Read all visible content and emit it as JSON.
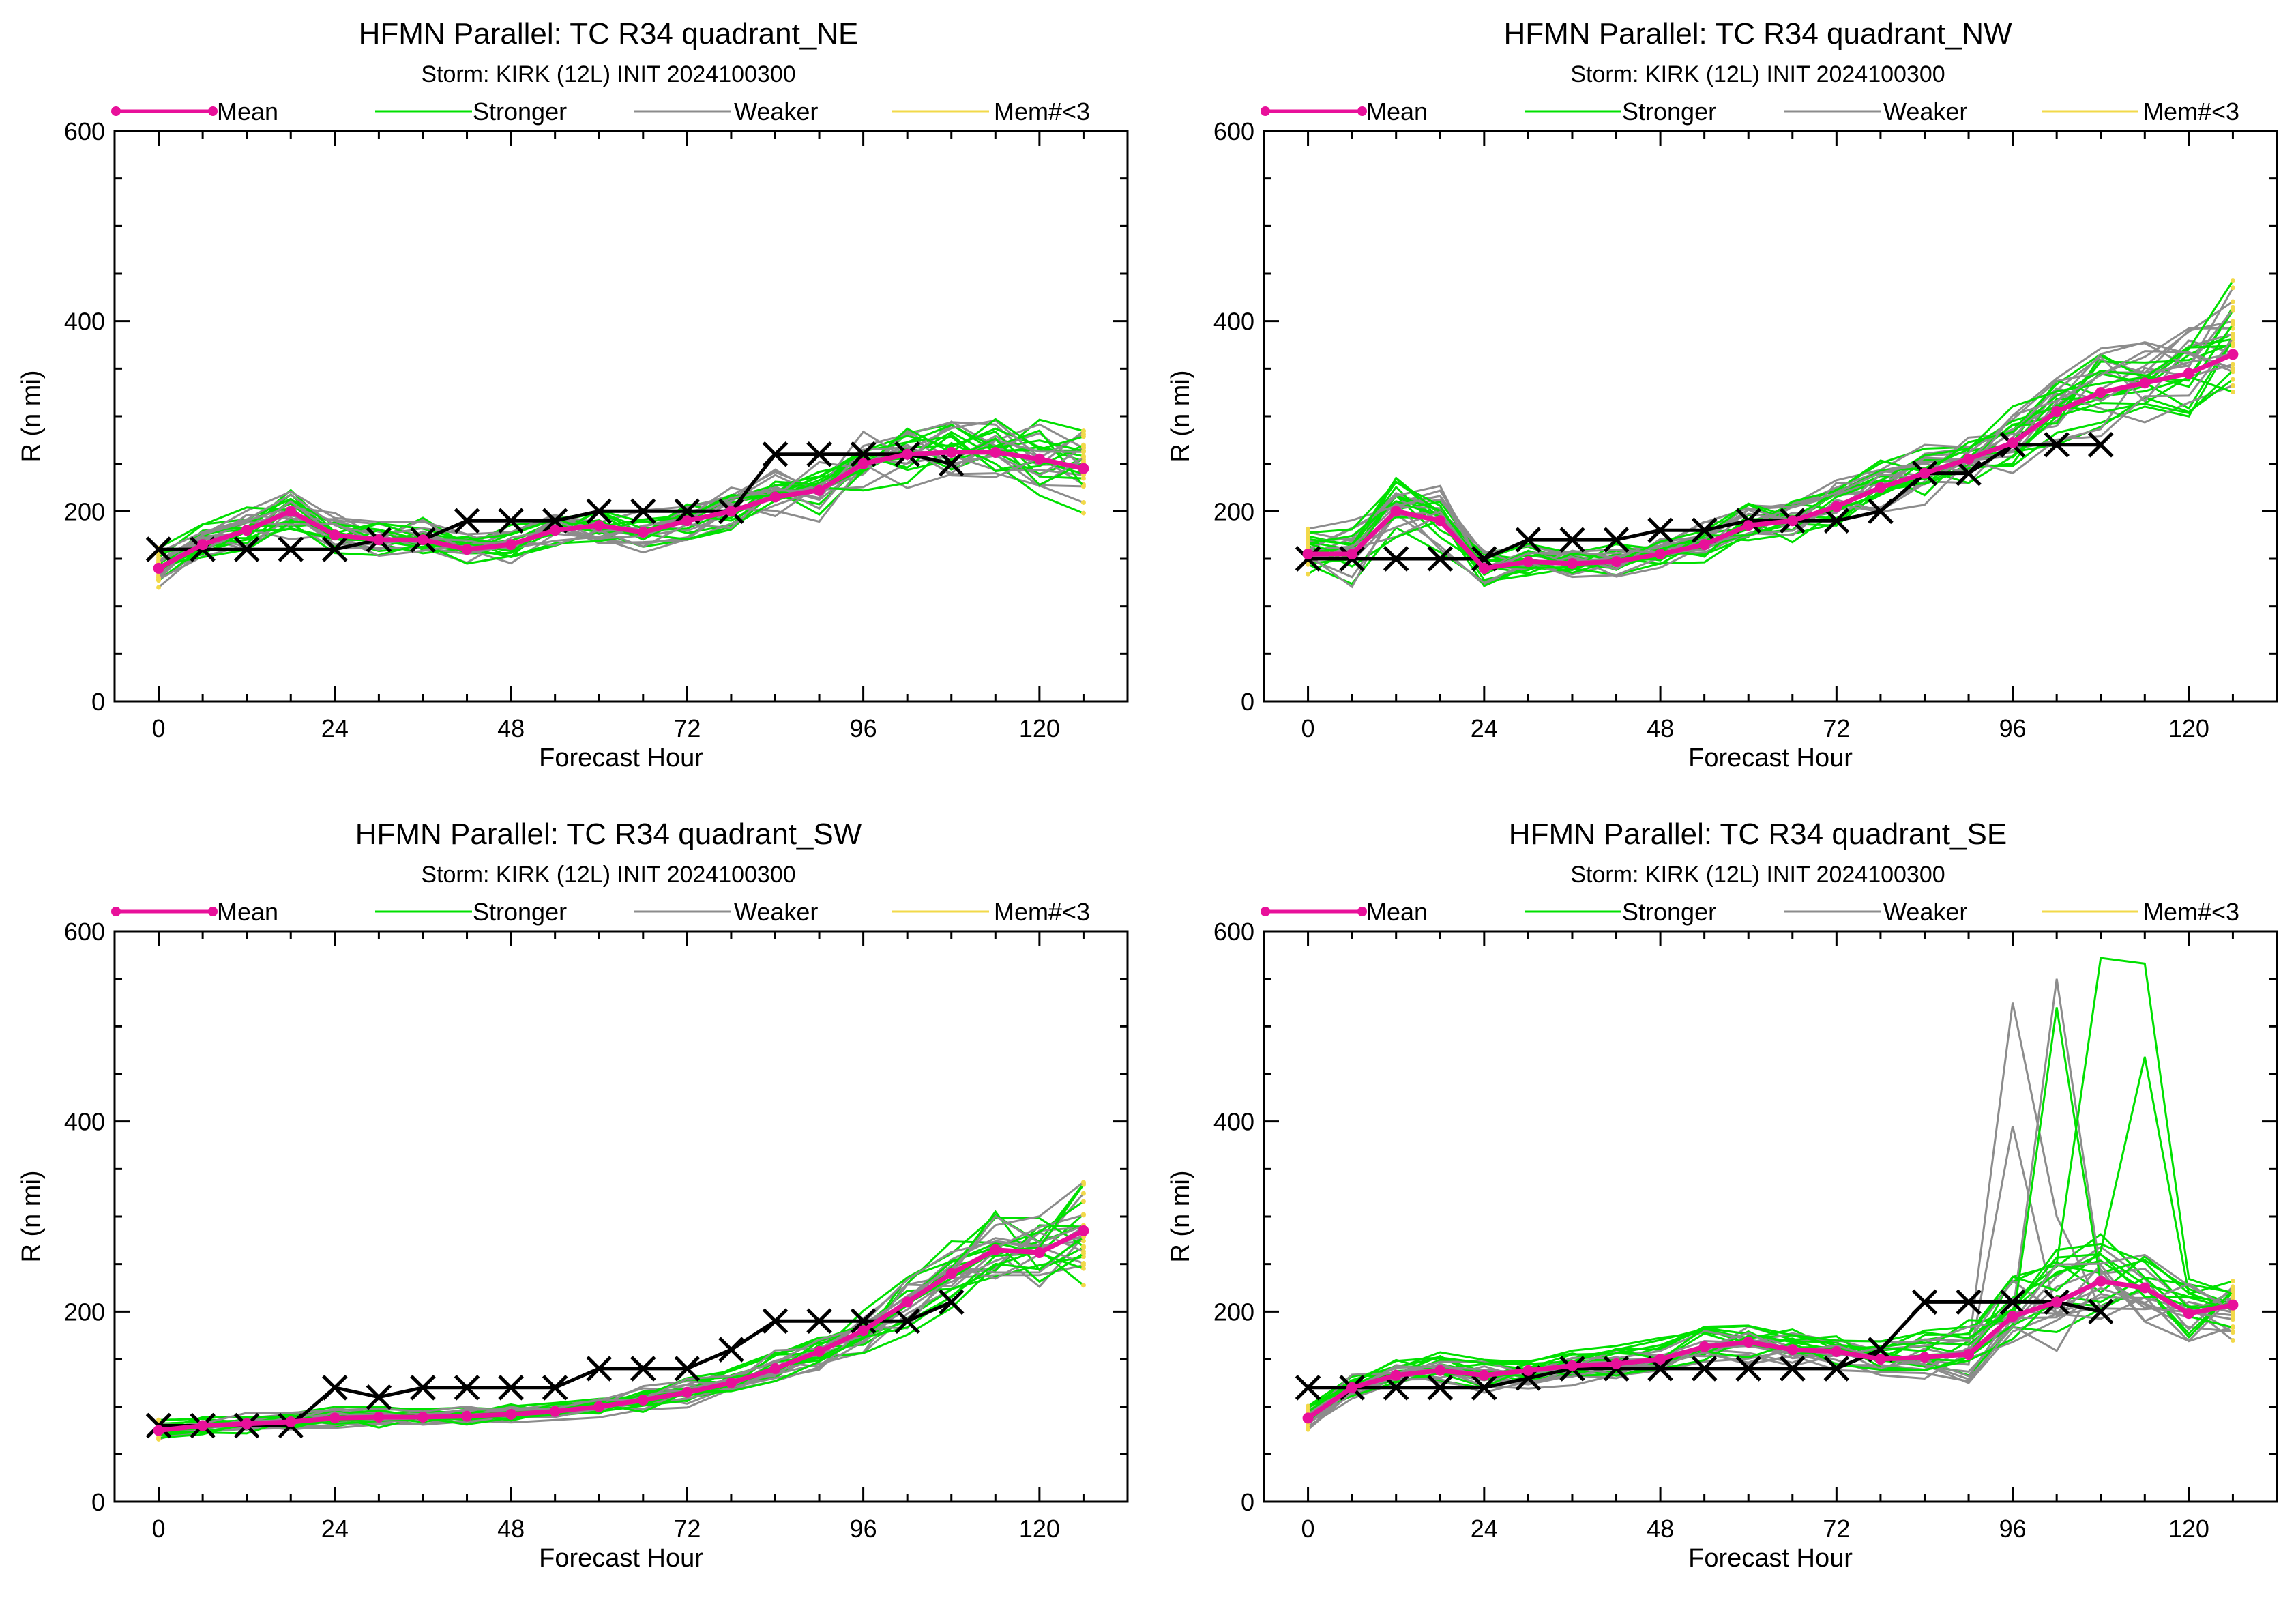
{
  "colors": {
    "mean": "#e8109a",
    "stronger": "#00e000",
    "weaker": "#8c8c8c",
    "few_members": "#f2d94a",
    "observed": "#000000"
  },
  "legend": {
    "mean": "Mean",
    "stronger": "Stronger",
    "weaker": "Weaker",
    "few_members": "Mem#<3"
  },
  "panels": [
    {
      "title": "HFMN Parallel: TC  R34 quadrant_NE",
      "subtitle": "Storm: KIRK (12L) INIT 2024100300"
    },
    {
      "title": "HFMN Parallel: TC  R34 quadrant_NW",
      "subtitle": "Storm: KIRK (12L) INIT 2024100300"
    },
    {
      "title": "HFMN Parallel: TC  R34 quadrant_SW",
      "subtitle": "Storm: KIRK (12L) INIT 2024100300"
    },
    {
      "title": "HFMN Parallel: TC  R34 quadrant_SE",
      "subtitle": "Storm: KIRK (12L) INIT 2024100300"
    }
  ],
  "chart_data": [
    {
      "type": "line",
      "title": "HFMN Parallel: TC  R34 quadrant_NE",
      "subtitle": "Storm: KIRK (12L) INIT 2024100300",
      "xlabel": "Forecast Hour",
      "ylabel": "R (n mi)",
      "xlim": [
        -6,
        132
      ],
      "ylim": [
        0,
        600
      ],
      "xticks": [
        0,
        24,
        48,
        72,
        96,
        120
      ],
      "yticks": [
        0,
        200,
        400,
        600
      ],
      "x": [
        0,
        6,
        12,
        18,
        24,
        30,
        36,
        42,
        48,
        54,
        60,
        66,
        72,
        78,
        84,
        90,
        96,
        102,
        108,
        114,
        120,
        126
      ],
      "series": [
        {
          "name": "Mean",
          "values": [
            140,
            165,
            180,
            200,
            175,
            170,
            170,
            160,
            165,
            180,
            185,
            178,
            190,
            200,
            215,
            222,
            250,
            260,
            262,
            262,
            255,
            245
          ]
        },
        {
          "name": "Observed",
          "x": [
            0,
            6,
            12,
            18,
            24,
            30,
            36,
            42,
            48,
            54,
            60,
            66,
            72,
            78,
            84,
            90,
            96,
            102,
            108
          ],
          "values": [
            160,
            160,
            160,
            160,
            160,
            170,
            170,
            190,
            190,
            190,
            200,
            200,
            200,
            200,
            260,
            260,
            260,
            260,
            250
          ]
        }
      ],
      "ensemble": {
        "members": 26,
        "spread": [
          22,
          26,
          30,
          34,
          28,
          26,
          24,
          22,
          22,
          24,
          26,
          26,
          28,
          30,
          32,
          36,
          38,
          40,
          44,
          50,
          56,
          62
        ],
        "stronger_members": 13
      }
    },
    {
      "type": "line",
      "title": "HFMN Parallel: TC  R34 quadrant_NW",
      "subtitle": "Storm: KIRK (12L) INIT 2024100300",
      "xlabel": "Forecast Hour",
      "ylabel": "R (n mi)",
      "xlim": [
        -6,
        132
      ],
      "ylim": [
        0,
        600
      ],
      "xticks": [
        0,
        24,
        48,
        72,
        96,
        120
      ],
      "yticks": [
        0,
        200,
        400,
        600
      ],
      "x": [
        0,
        6,
        12,
        18,
        24,
        30,
        36,
        42,
        48,
        54,
        60,
        66,
        72,
        78,
        84,
        90,
        96,
        102,
        108,
        114,
        120,
        126
      ],
      "series": [
        {
          "name": "Mean",
          "values": [
            155,
            155,
            200,
            190,
            140,
            147,
            145,
            147,
            155,
            165,
            185,
            190,
            205,
            225,
            240,
            255,
            272,
            305,
            325,
            335,
            345,
            365
          ]
        },
        {
          "name": "Observed",
          "x": [
            0,
            6,
            12,
            18,
            24,
            30,
            36,
            42,
            48,
            54,
            60,
            66,
            72,
            78,
            84,
            90,
            96,
            102,
            108
          ],
          "values": [
            150,
            150,
            150,
            150,
            150,
            170,
            170,
            170,
            180,
            180,
            190,
            190,
            190,
            200,
            240,
            240,
            270,
            270,
            270
          ]
        }
      ],
      "ensemble": {
        "members": 26,
        "spread": [
          30,
          40,
          50,
          40,
          26,
          24,
          24,
          24,
          24,
          26,
          28,
          30,
          34,
          38,
          40,
          44,
          48,
          52,
          56,
          62,
          70,
          80
        ],
        "stronger_members": 13
      }
    },
    {
      "type": "line",
      "title": "HFMN Parallel: TC  R34 quadrant_SW",
      "subtitle": "Storm: KIRK (12L) INIT 2024100300",
      "xlabel": "Forecast Hour",
      "ylabel": "R (n mi)",
      "xlim": [
        -6,
        132
      ],
      "ylim": [
        0,
        600
      ],
      "xticks": [
        0,
        24,
        48,
        72,
        96,
        120
      ],
      "yticks": [
        0,
        200,
        400,
        600
      ],
      "x": [
        0,
        6,
        12,
        18,
        24,
        30,
        36,
        42,
        48,
        54,
        60,
        66,
        72,
        78,
        84,
        90,
        96,
        102,
        108,
        114,
        120,
        126
      ],
      "series": [
        {
          "name": "Mean",
          "values": [
            75,
            80,
            82,
            84,
            88,
            89,
            89,
            90,
            92,
            95,
            100,
            107,
            115,
            125,
            140,
            158,
            180,
            210,
            240,
            265,
            262,
            285
          ]
        },
        {
          "name": "Observed",
          "x": [
            0,
            6,
            12,
            18,
            24,
            30,
            36,
            42,
            48,
            54,
            60,
            66,
            72,
            78,
            84,
            90,
            96,
            102,
            108
          ],
          "values": [
            80,
            80,
            80,
            80,
            120,
            110,
            120,
            120,
            120,
            120,
            140,
            140,
            140,
            160,
            190,
            190,
            190,
            190,
            210
          ]
        }
      ],
      "ensemble": {
        "members": 26,
        "spread": [
          12,
          12,
          12,
          12,
          12,
          12,
          12,
          12,
          12,
          14,
          14,
          16,
          18,
          20,
          22,
          26,
          30,
          36,
          44,
          52,
          62,
          70
        ],
        "stronger_members": 13
      }
    },
    {
      "type": "line",
      "title": "HFMN Parallel: TC  R34 quadrant_SE",
      "subtitle": "Storm: KIRK (12L) INIT 2024100300",
      "xlabel": "Forecast Hour",
      "ylabel": "R (n mi)",
      "xlim": [
        -6,
        132
      ],
      "ylim": [
        0,
        600
      ],
      "xticks": [
        0,
        24,
        48,
        72,
        96,
        120
      ],
      "yticks": [
        0,
        200,
        400,
        600
      ],
      "x": [
        0,
        6,
        12,
        18,
        24,
        30,
        36,
        42,
        48,
        54,
        60,
        66,
        72,
        78,
        84,
        90,
        96,
        102,
        108,
        114,
        120,
        126
      ],
      "series": [
        {
          "name": "Mean",
          "values": [
            88,
            120,
            133,
            138,
            133,
            138,
            143,
            145,
            150,
            163,
            168,
            160,
            158,
            150,
            152,
            155,
            195,
            210,
            232,
            225,
            198,
            207
          ]
        },
        {
          "name": "Observed",
          "x": [
            0,
            6,
            12,
            18,
            24,
            30,
            36,
            42,
            48,
            54,
            60,
            66,
            72,
            78,
            84,
            90,
            96,
            102,
            108
          ],
          "values": [
            120,
            120,
            120,
            120,
            120,
            130,
            140,
            140,
            140,
            140,
            140,
            140,
            140,
            160,
            210,
            210,
            210,
            210,
            200
          ]
        }
      ],
      "ensemble": {
        "members": 26,
        "spread": [
          14,
          16,
          18,
          20,
          20,
          20,
          22,
          22,
          24,
          26,
          26,
          24,
          24,
          24,
          30,
          40,
          60,
          70,
          60,
          50,
          45,
          45
        ],
        "stronger_members": 13,
        "outliers": [
          {
            "member": 3,
            "x": 96,
            "y": 525
          },
          {
            "member": 3,
            "x": 102,
            "y": 300
          },
          {
            "member": 5,
            "x": 102,
            "y": 550
          },
          {
            "member": 5,
            "x": 108,
            "y": 240
          },
          {
            "member": 14,
            "x": 108,
            "y": 572
          },
          {
            "member": 14,
            "x": 114,
            "y": 566
          },
          {
            "member": 16,
            "x": 114,
            "y": 468
          },
          {
            "member": 7,
            "x": 96,
            "y": 395
          },
          {
            "member": 18,
            "x": 102,
            "y": 520
          }
        ]
      }
    }
  ]
}
